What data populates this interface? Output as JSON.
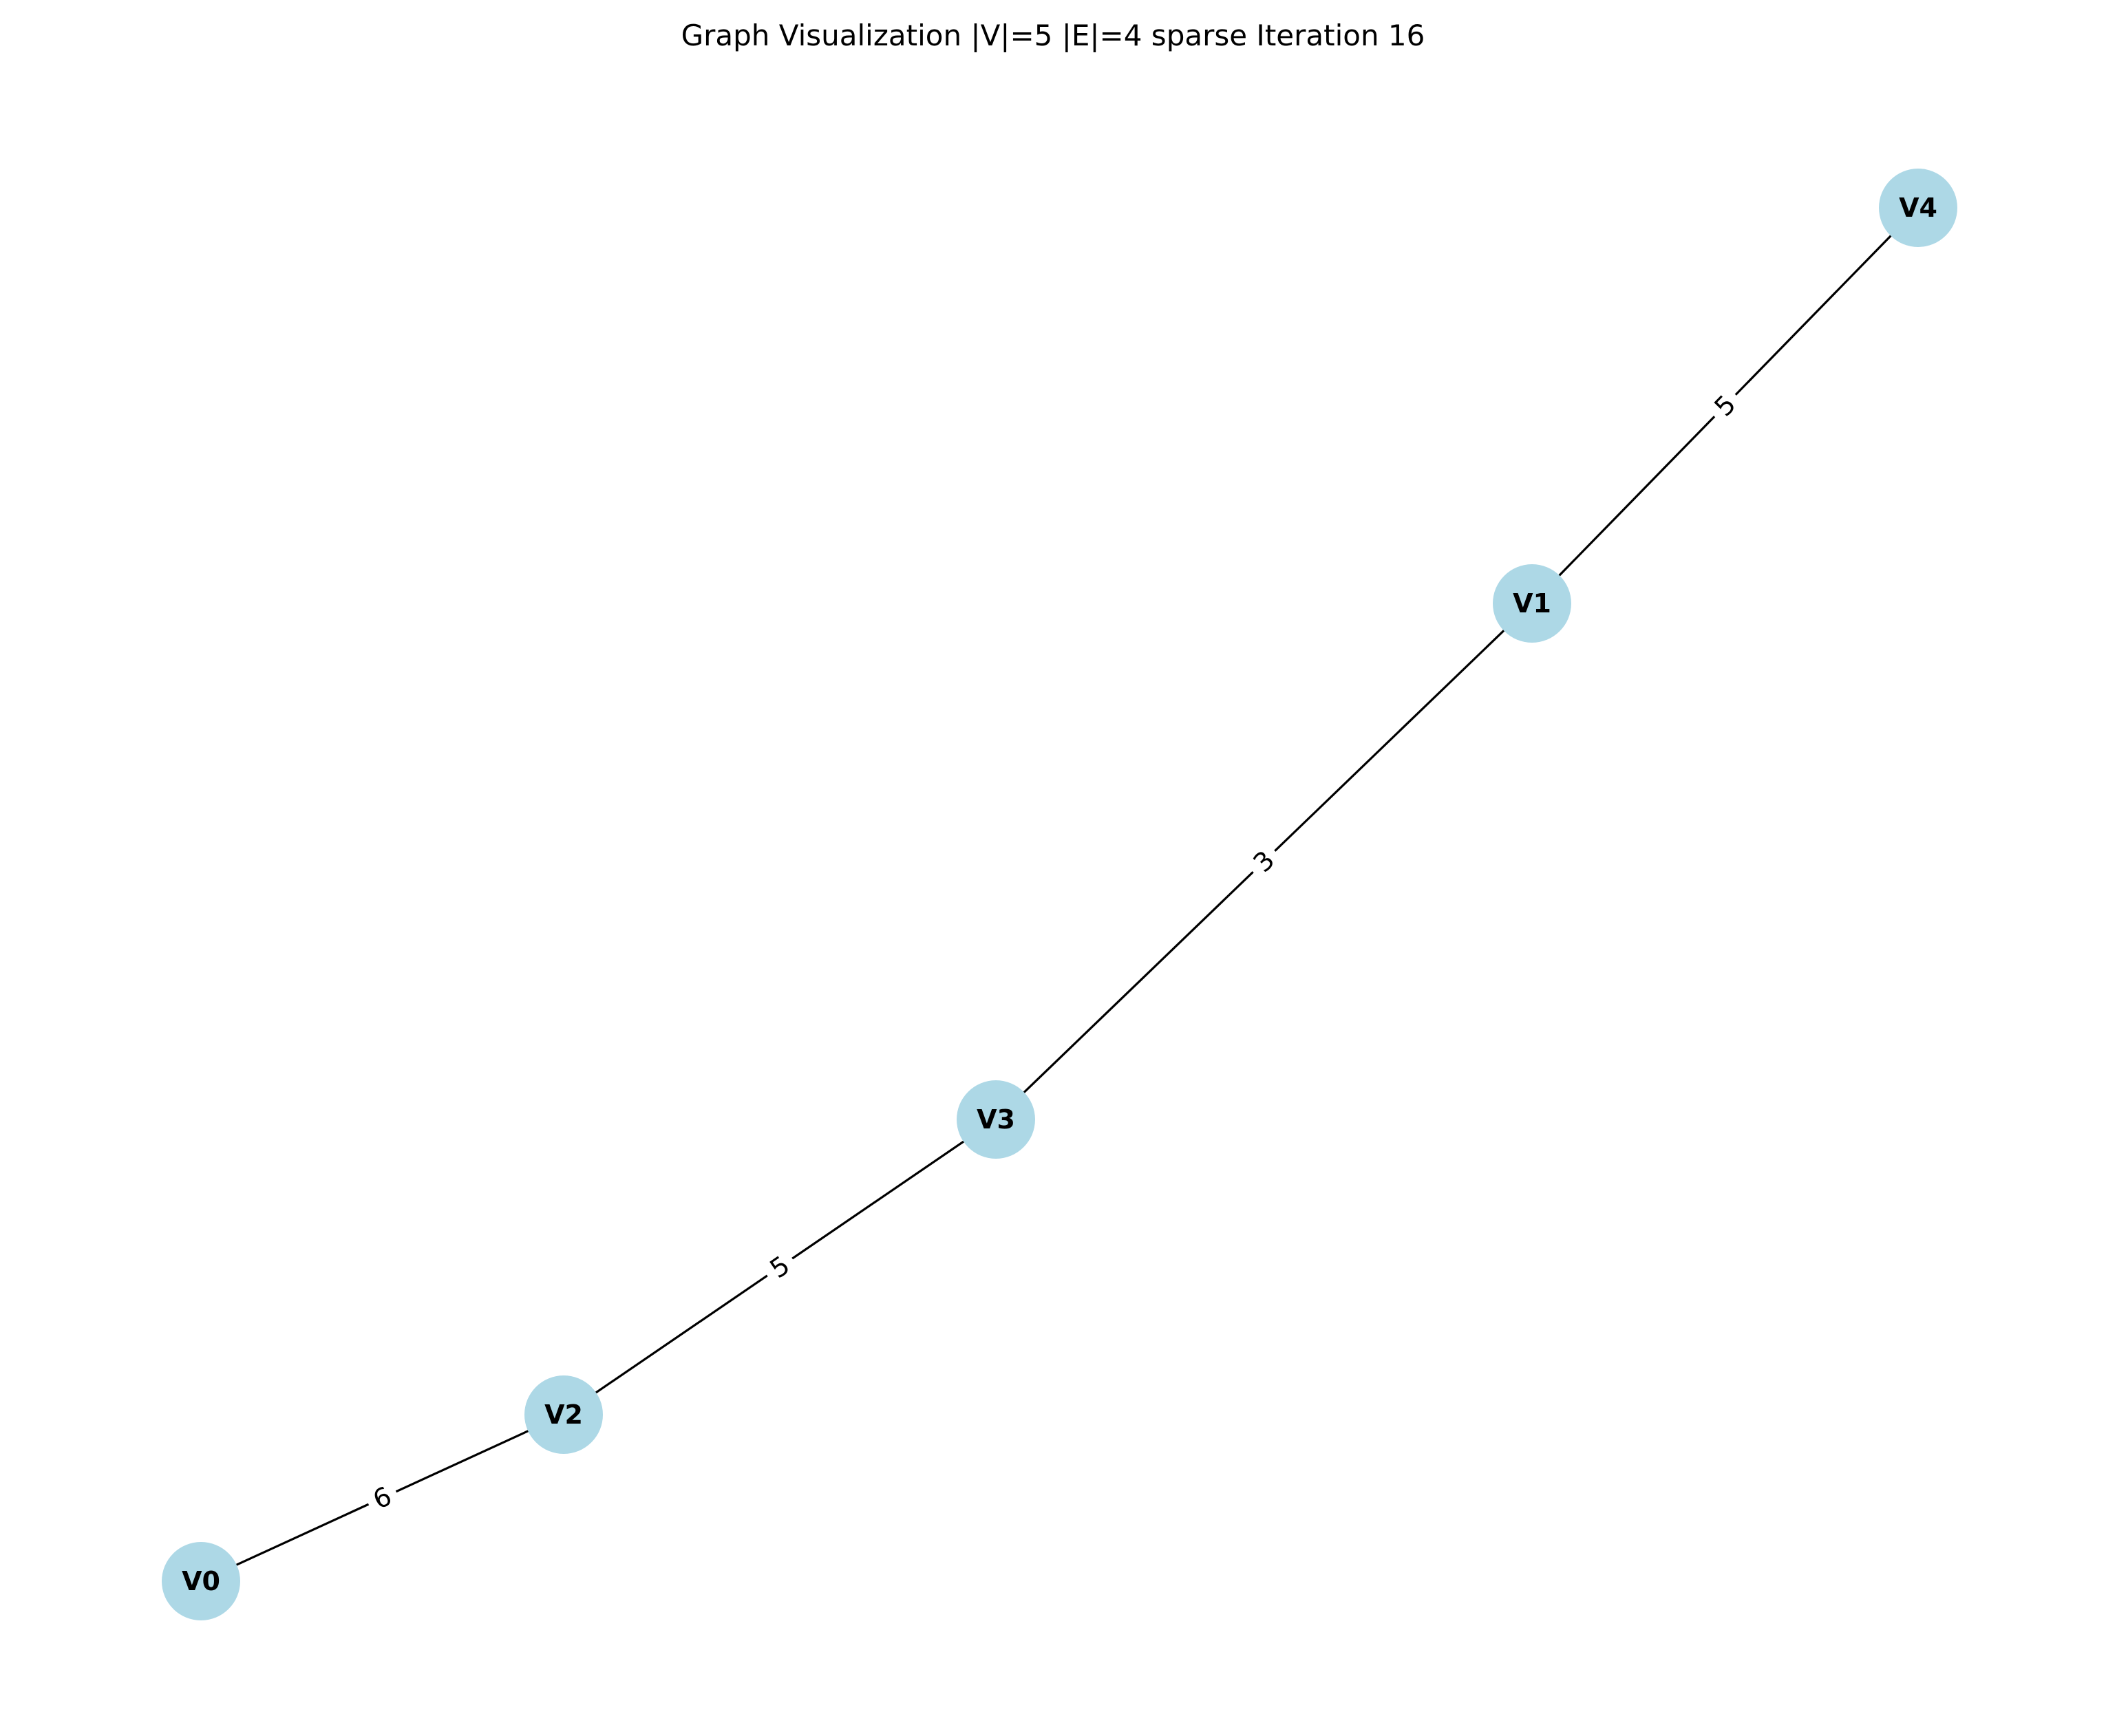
{
  "title": "Graph Visualization |V|=5 |E|=4 sparse Iteration 16",
  "style": {
    "node_color": "#add8e6",
    "edge_color": "#000000",
    "background": "#ffffff"
  },
  "graph": {
    "nodes": [
      {
        "id": "V0",
        "label": "V0"
      },
      {
        "id": "V1",
        "label": "V1"
      },
      {
        "id": "V2",
        "label": "V2"
      },
      {
        "id": "V3",
        "label": "V3"
      },
      {
        "id": "V4",
        "label": "V4"
      }
    ],
    "edges": [
      {
        "source": "V0",
        "target": "V2",
        "weight": "6"
      },
      {
        "source": "V2",
        "target": "V3",
        "weight": "5"
      },
      {
        "source": "V3",
        "target": "V1",
        "weight": "3"
      },
      {
        "source": "V1",
        "target": "V4",
        "weight": "5"
      }
    ]
  }
}
